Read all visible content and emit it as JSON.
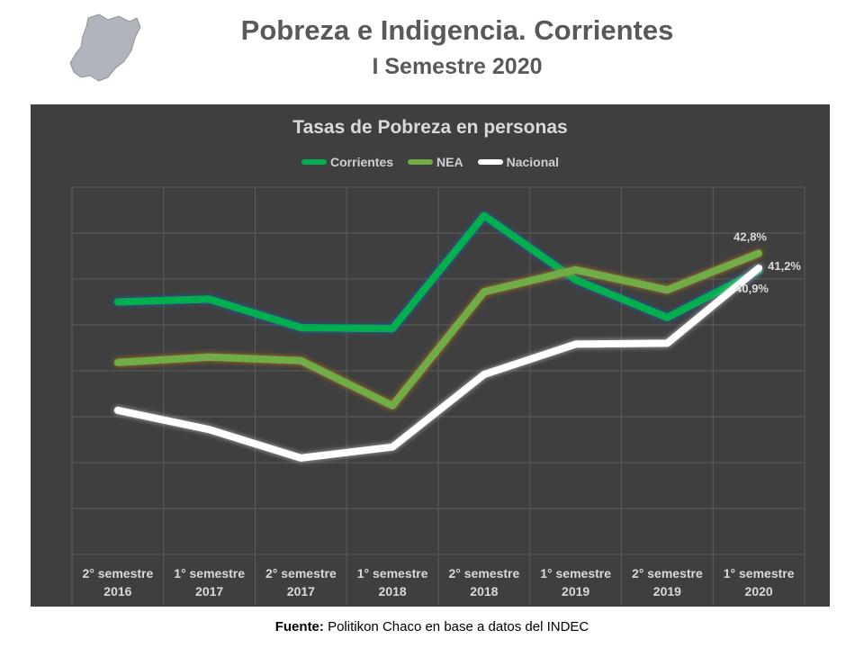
{
  "header": {
    "title": "Pobreza e Indigencia. Corrientes",
    "subtitle": "I Semestre 2020",
    "source_label": "Fuente:",
    "source_text": " Politikon Chaco en base a datos del INDEC"
  },
  "colors": {
    "Corrientes": "#00b050",
    "NEA": "#70ad47",
    "Nacional": "#ffffff",
    "background": "#3f3f3f"
  },
  "chart_data": {
    "type": "line",
    "title": "Tasas de Pobreza en personas",
    "categories": [
      [
        "2° semestre",
        "2016"
      ],
      [
        "1° semestre",
        "2017"
      ],
      [
        "2° semestre",
        "2017"
      ],
      [
        "1° semestre",
        "2018"
      ],
      [
        "2° semestre",
        "2018"
      ],
      [
        "1° semestre",
        "2019"
      ],
      [
        "2° semestre",
        "2019"
      ],
      [
        "1° semestre",
        "2020"
      ]
    ],
    "series": [
      {
        "name": "Corrientes",
        "values": [
          37.5,
          37.8,
          34.7,
          34.6,
          46.9,
          39.9,
          35.8,
          40.9
        ]
      },
      {
        "name": "NEA",
        "values": [
          30.9,
          31.5,
          31.1,
          26.2,
          38.6,
          41.0,
          38.8,
          42.8
        ]
      },
      {
        "name": "Nacional",
        "values": [
          25.7,
          23.6,
          20.5,
          21.7,
          29.6,
          32.9,
          33.0,
          41.2
        ]
      }
    ],
    "data_labels": [
      {
        "series": "NEA",
        "index": 7,
        "text": "42,8%"
      },
      {
        "series": "Nacional",
        "index": 7,
        "text": "41,2%"
      },
      {
        "series": "Corrientes",
        "index": 7,
        "text": "40,9%"
      }
    ],
    "ylim": [
      10,
      50
    ],
    "grid": true,
    "legend": "top-center",
    "y_tick_labels_shown": false
  }
}
